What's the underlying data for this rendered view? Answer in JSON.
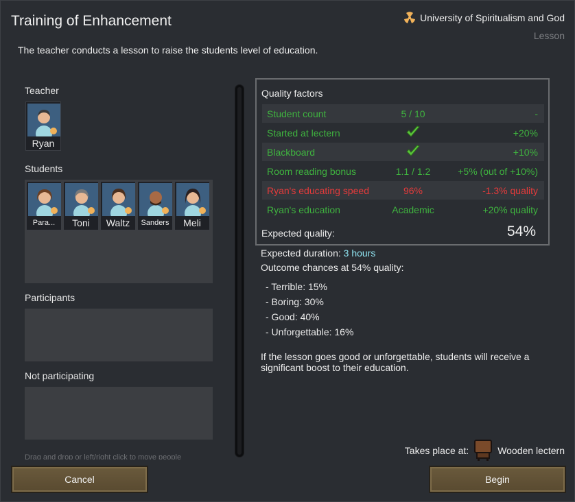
{
  "dialog": {
    "title": "Training of Enhancement",
    "ideology": "University of Spiritualism and God",
    "ritual_type": "Lesson",
    "description": "The teacher conducts a lesson to raise the students level of education."
  },
  "roles": {
    "teacher_label": "Teacher",
    "teacher": {
      "name": "Ryan"
    },
    "students_label": "Students",
    "students": [
      {
        "name": "Para..."
      },
      {
        "name": "Toni"
      },
      {
        "name": "Waltz"
      },
      {
        "name": "Sanders"
      },
      {
        "name": "Meli"
      }
    ],
    "participants_label": "Participants",
    "not_participating_label": "Not participating",
    "hint": "Drag and drop or left/right click to move people"
  },
  "quality": {
    "title": "Quality factors",
    "rows": [
      {
        "label": "Student count",
        "value": "5 / 10",
        "effect": "-",
        "color": "green"
      },
      {
        "label": "Started at lectern",
        "value": "check",
        "effect": "+20%",
        "color": "green"
      },
      {
        "label": "Blackboard",
        "value": "check",
        "effect": "+10%",
        "color": "green"
      },
      {
        "label": "Room reading bonus",
        "value": "1.1 / 1.2",
        "effect": "+5% (out of +10%)",
        "color": "green"
      },
      {
        "label": "Ryan's educating speed",
        "value": "96%",
        "effect": "-1.3% quality",
        "color": "red"
      },
      {
        "label": "Ryan's education",
        "value": "Academic",
        "effect": "+20% quality",
        "color": "green"
      }
    ],
    "expected_label": "Expected quality:",
    "expected_value": "54%"
  },
  "outcome": {
    "duration_label": "Expected duration:",
    "duration_value": "3 hours",
    "chances_label": "Outcome chances at 54% quality:",
    "chances": [
      "- Terrible: 15%",
      "- Boring: 30%",
      "- Good: 40%",
      "- Unforgettable: 16%"
    ],
    "note": "If the lesson goes good or unforgettable, students will receive a significant boost to their education."
  },
  "location": {
    "label": "Takes place at:",
    "name": "Wooden lectern"
  },
  "buttons": {
    "cancel": "Cancel",
    "begin": "Begin"
  },
  "colors": {
    "green": "#3fb33f",
    "red": "#e63b3b",
    "cyan": "#8fe3f0",
    "button": "#6a5a3c"
  }
}
